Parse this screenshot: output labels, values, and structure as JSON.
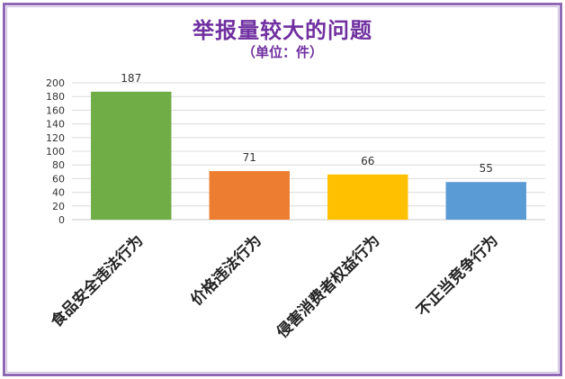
{
  "chart_data": {
    "type": "bar",
    "title": "举报量较大的问题",
    "subtitle": "（单位：件）",
    "categories": [
      "食品安全违法行为",
      "价格违法行为",
      "侵害消费者权益行为",
      "不正当竞争行为"
    ],
    "values": [
      187,
      71,
      66,
      55
    ],
    "colors": [
      "#70ad47",
      "#ed7d31",
      "#ffc000",
      "#5b9bd5"
    ],
    "ylim": [
      0,
      200
    ],
    "yticks": [
      0,
      20,
      40,
      60,
      80,
      100,
      120,
      140,
      160,
      180,
      200
    ],
    "grid": true,
    "legend": "none",
    "data_labels": true
  }
}
